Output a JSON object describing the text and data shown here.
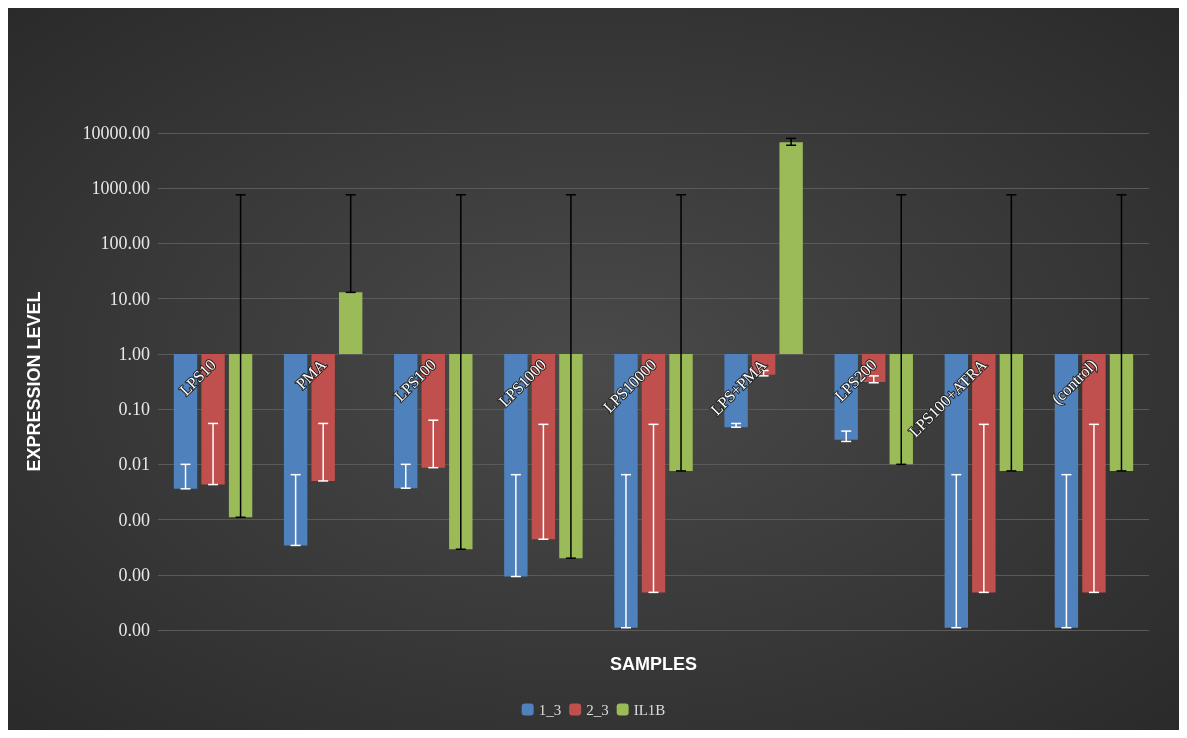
{
  "chart_data": {
    "type": "bar",
    "xlabel": "SAMPLES",
    "ylabel": "EXPRESSION LEVEL",
    "log": true,
    "grid": "y",
    "legend": "bottom",
    "categories": [
      "LPS10",
      "PMA",
      "LPS100",
      "LPS1000",
      "LPS10000",
      "LPS+PMA",
      "LPS200",
      "LPS100+ATRA",
      "(control)"
    ],
    "ylim": [
      1e-05,
      10000
    ],
    "yticks": [
      {
        "value": 1e-05,
        "label": "0.00"
      },
      {
        "value": 0.0001,
        "label": "0.00"
      },
      {
        "value": 0.001,
        "label": "0.00"
      },
      {
        "value": 0.01,
        "label": "0.01"
      },
      {
        "value": 0.1,
        "label": "0.10"
      },
      {
        "value": 1,
        "label": "1.00"
      },
      {
        "value": 10,
        "label": "10.00"
      },
      {
        "value": 100,
        "label": "100.00"
      },
      {
        "value": 1000,
        "label": "1000.00"
      },
      {
        "value": 10000,
        "label": "10000.00"
      }
    ],
    "series": [
      {
        "name": "1_3",
        "color": "#4f81bd",
        "base": [
          1,
          1,
          1,
          1,
          1,
          1,
          1,
          1,
          1
        ],
        "values": [
          -0.9964,
          -0.99966,
          -0.9963,
          -0.999907,
          -0.999989,
          -0.953,
          -0.972,
          -0.999989,
          -0.999989
        ],
        "errors": [
          [
            0.0036,
            0.01
          ],
          [
            0.00034,
            0.0065
          ],
          [
            0.0037,
            0.01
          ],
          [
            9.3e-05,
            0.0065
          ],
          [
            1.1e-05,
            0.0065
          ],
          [
            0.047,
            0.055
          ],
          [
            0.026,
            0.04
          ],
          [
            1.1e-05,
            0.0065
          ],
          [
            1.1e-05,
            0.0065
          ]
        ]
      },
      {
        "name": "2_3",
        "color": "#c0504d",
        "base": [
          1,
          1,
          1,
          1,
          1,
          1,
          1,
          1,
          1
        ],
        "values": [
          -0.9957,
          -0.995,
          -0.9913,
          -0.99956,
          -0.999952,
          -0.58,
          -0.69,
          -0.999952,
          -0.999952
        ],
        "errors": [
          [
            0.0043,
            0.055
          ],
          [
            0.005,
            0.055
          ],
          [
            0.0087,
            0.063
          ],
          [
            0.00044,
            0.053
          ],
          [
            4.8e-05,
            0.053
          ],
          [
            0.4,
            0.5
          ],
          [
            0.3,
            0.4
          ],
          [
            4.8e-05,
            0.053
          ],
          [
            4.8e-05,
            0.053
          ]
        ]
      },
      {
        "name": "IL1B",
        "color": "#9bbb59",
        "base": [
          1,
          1,
          1,
          1,
          1,
          1,
          1,
          1,
          1
        ],
        "values": [
          -0.9989,
          12,
          -0.99971,
          -0.9998,
          -0.9924,
          6799,
          -0.99,
          -0.9924,
          -0.9924
        ],
        "errors": [
          [
            0.0011,
            760
          ],
          [
            13,
            760
          ],
          [
            0.00029,
            760
          ],
          [
            0.0002,
            760
          ],
          [
            0.0076,
            760
          ],
          [
            6000,
            8000
          ],
          [
            0.01,
            760
          ],
          [
            0.0076,
            760
          ],
          [
            0.0076,
            760
          ]
        ]
      }
    ]
  }
}
